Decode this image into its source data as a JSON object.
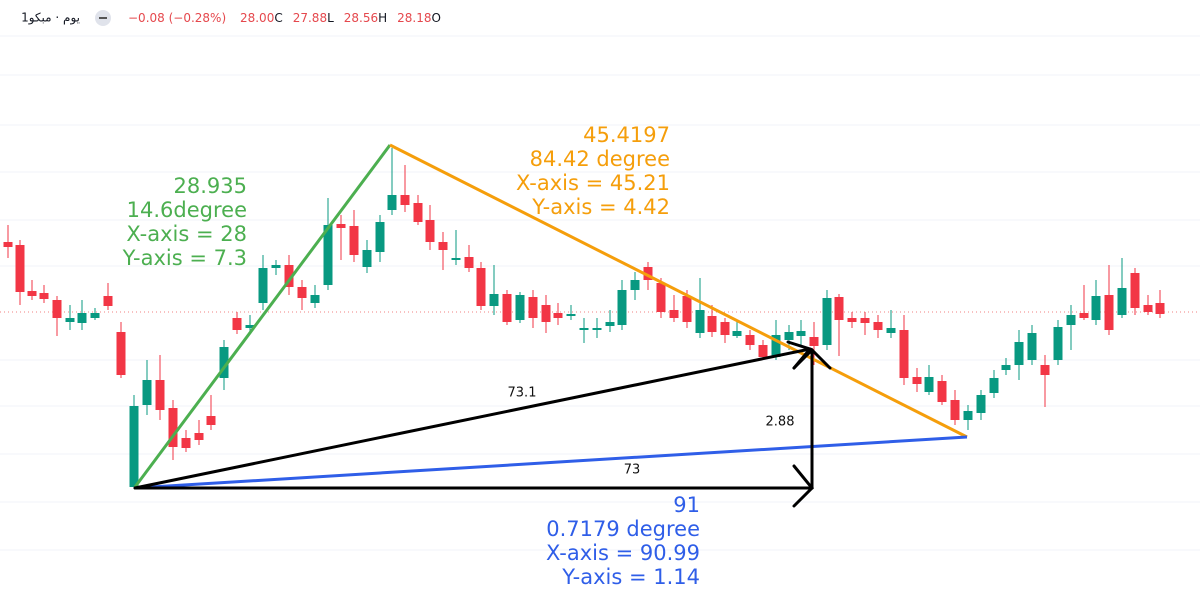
{
  "header": {
    "symbol": "1يوم · مبكو",
    "change": "−0.08 (−0.28%)",
    "ohlc": [
      {
        "price": "28.00",
        "key": "C"
      },
      {
        "price": "27.88",
        "key": "L"
      },
      {
        "price": "28.56",
        "key": "H"
      },
      {
        "price": "28.18",
        "key": "O"
      }
    ]
  },
  "annotations": {
    "green": [
      "28.935",
      "14.6degree",
      "X-axis = 28",
      "Y-axis = 7.3"
    ],
    "orange": [
      "45.4197",
      "84.42 degree",
      "X-axis = 45.21",
      "Y-axis = 4.42"
    ],
    "blue": [
      "91",
      "0.7179 degree",
      "X-axis = 90.99",
      "Y-axis = 1.14"
    ],
    "hypotenuse": "73.1",
    "vertical": "2.88",
    "horizontal": "73"
  }
}
